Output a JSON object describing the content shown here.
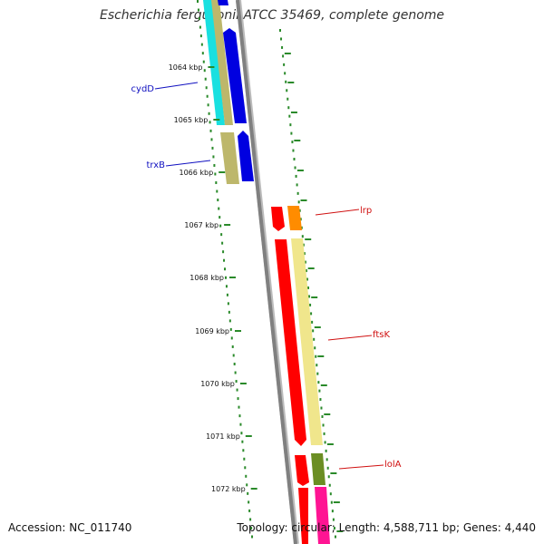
{
  "title": "Escherichia fergusonii ATCC 35469, complete genome",
  "footer": {
    "accession": "Accession: NC_011740",
    "summary": "Topology: circular; Length: 4,588,711 bp; Genes: 4,440"
  },
  "ticks": [
    "1064 kbp",
    "1065 kbp",
    "1066 kbp",
    "1067 kbp",
    "1068 kbp",
    "1069 kbp",
    "1070 kbp",
    "1071 kbp",
    "1072 kbp"
  ],
  "genes": [
    {
      "name": "cydD",
      "color": "#1010c0"
    },
    {
      "name": "trxB",
      "color": "#1010c0"
    },
    {
      "name": "lrp",
      "color": "#d01010"
    },
    {
      "name": "ftsK",
      "color": "#d01010"
    },
    {
      "name": "lolA",
      "color": "#d01010"
    }
  ],
  "colors": {
    "backbone": "#888888",
    "dots": "#2a8a2a",
    "cyan": "#19e0e0",
    "khaki": "#bdb76b",
    "blue": "#0000e0",
    "red": "#ff0000",
    "orange": "#ff8c00",
    "yellow": "#f0e68c",
    "olive": "#6b8e23",
    "pink": "#ff1493"
  }
}
